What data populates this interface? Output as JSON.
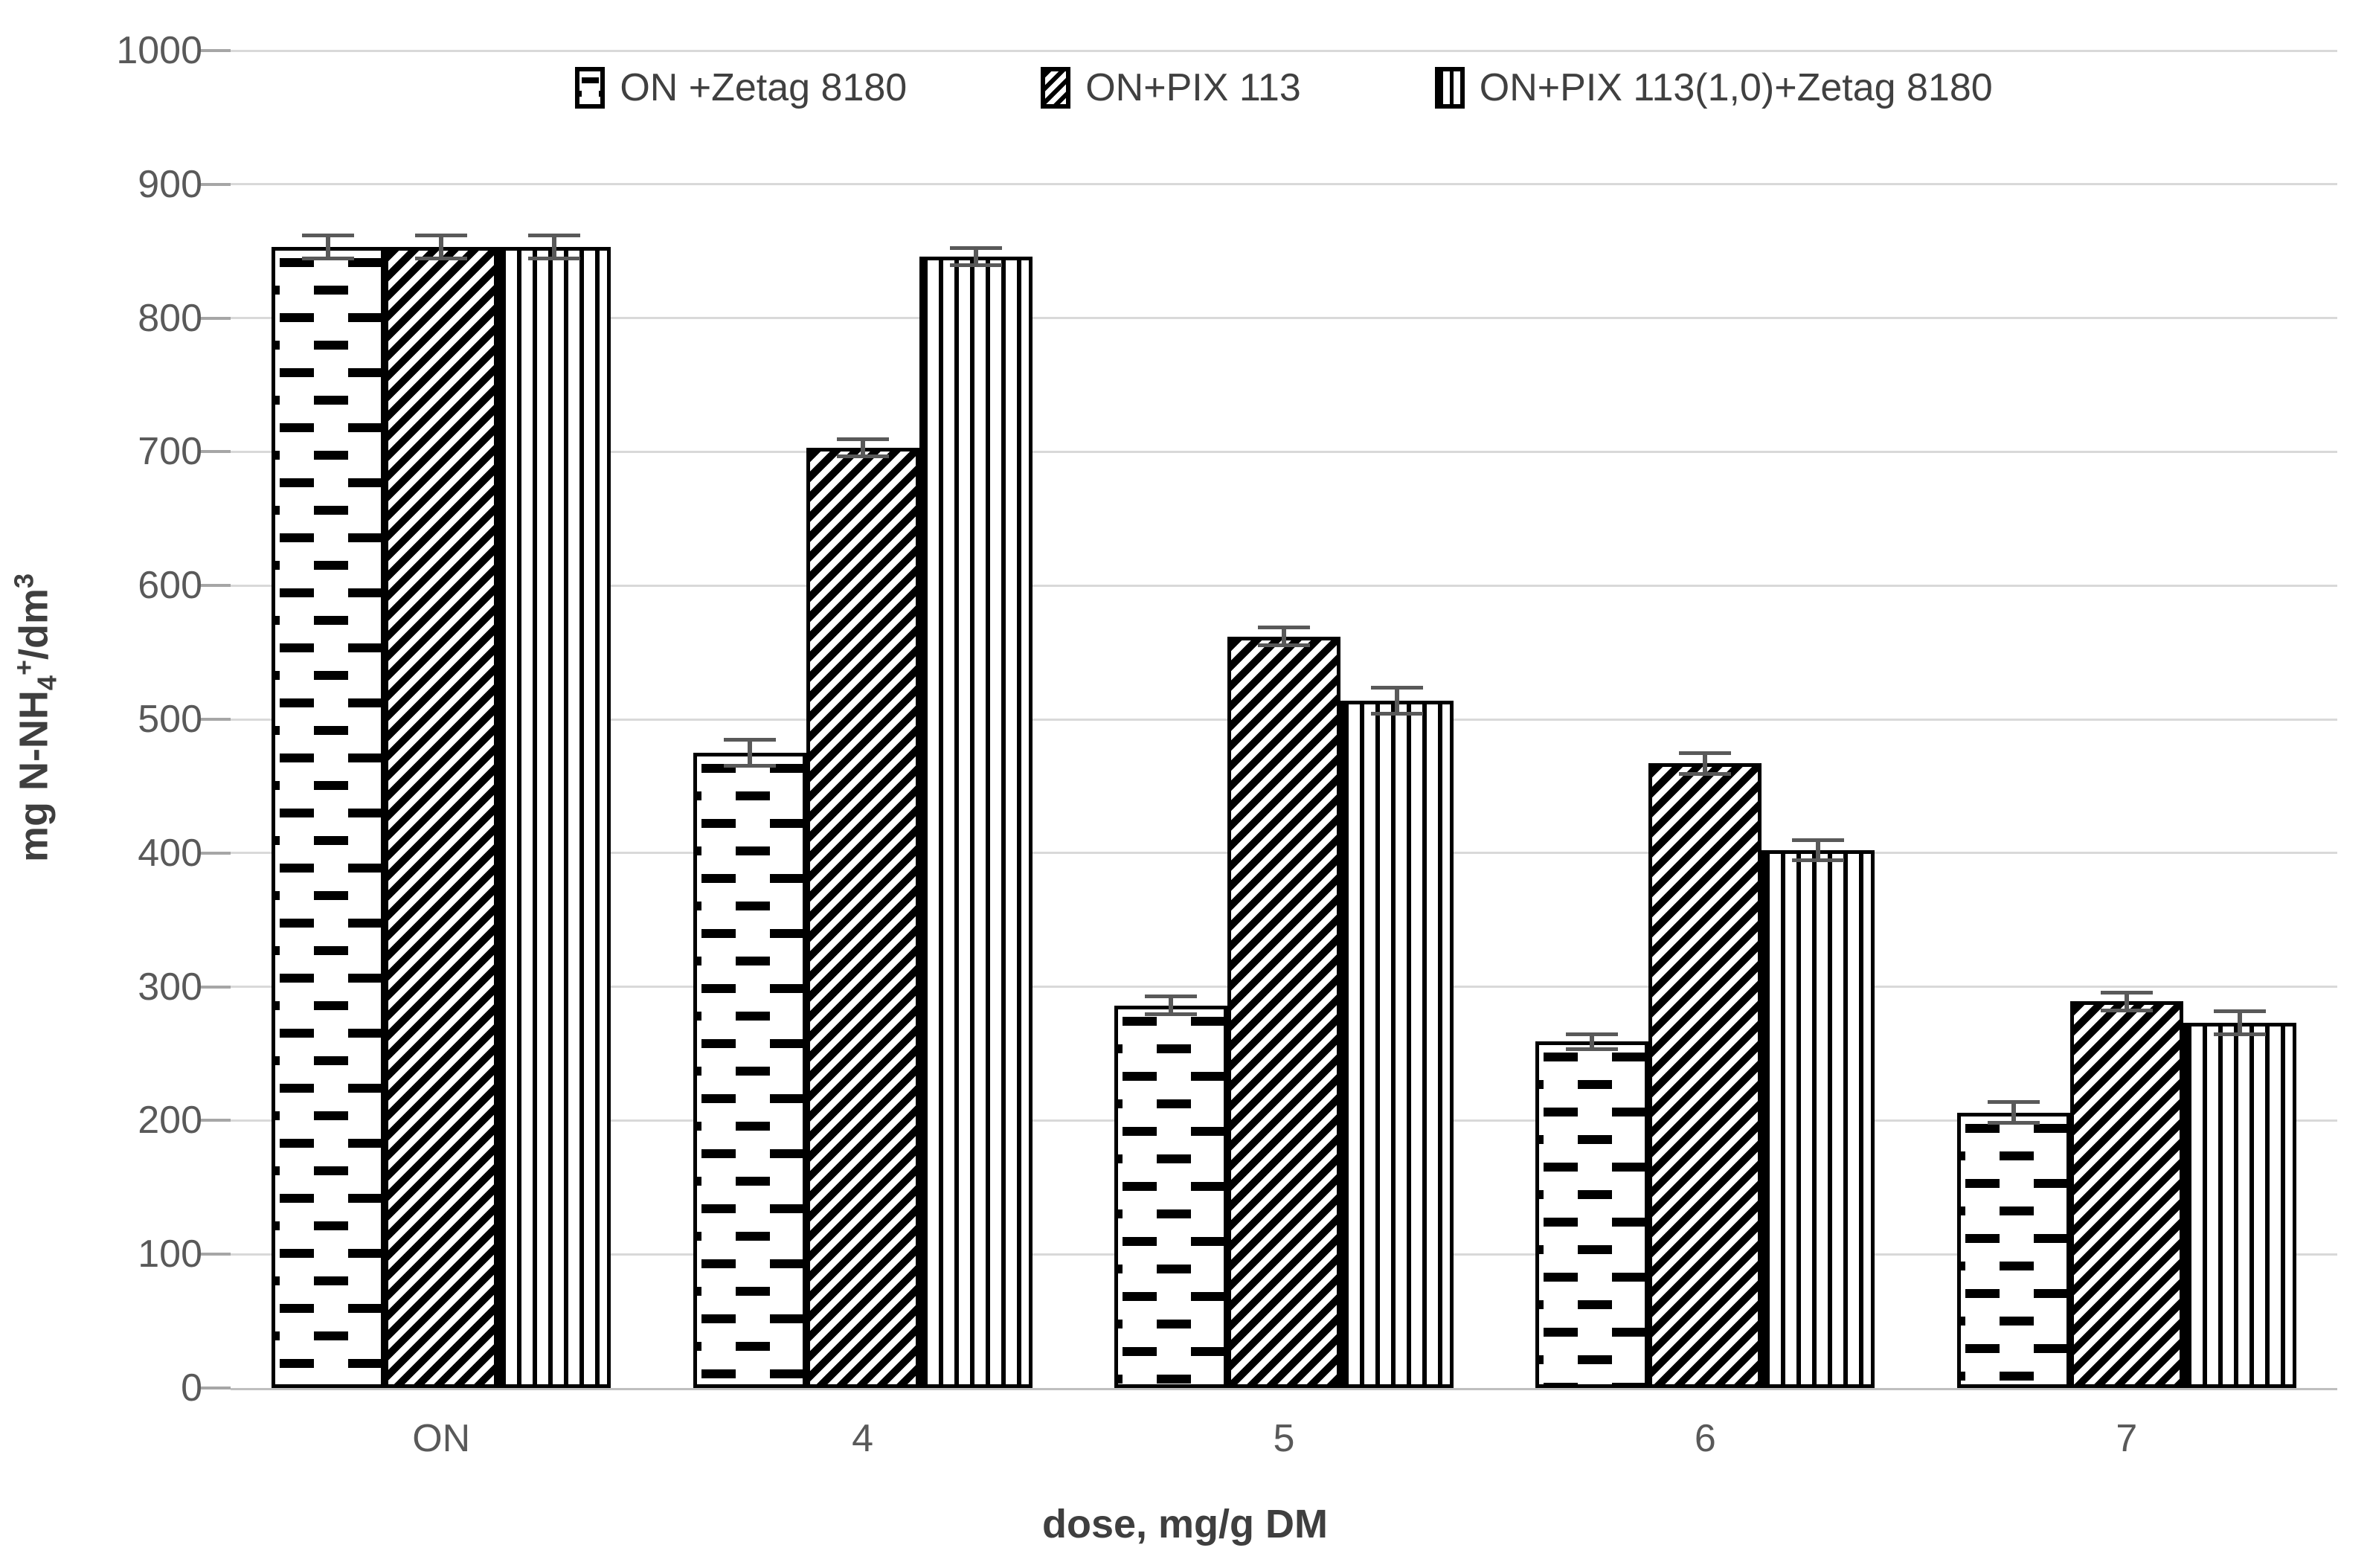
{
  "chart_data": {
    "type": "bar",
    "title": "",
    "categories": [
      "ON",
      "4",
      "5",
      "6",
      "7"
    ],
    "series": [
      {
        "name": "ON +Zetag 8180",
        "pattern": "dashed-horizontal",
        "values": [
          853,
          475,
          286,
          259,
          206
        ],
        "errors": [
          10,
          11,
          8,
          7,
          9
        ]
      },
      {
        "name": "ON+PIX 113",
        "pattern": "diagonal-hatch",
        "values": [
          853,
          703,
          562,
          467,
          289
        ],
        "errors": [
          10,
          8,
          8,
          9,
          8
        ]
      },
      {
        "name": "ON+PIX 113(1,0)+Zetag 8180",
        "pattern": "vertical-lines",
        "values": [
          853,
          846,
          514,
          402,
          273
        ],
        "errors": [
          10,
          8,
          11,
          9,
          10
        ]
      }
    ],
    "xlabel": "dose, mg/g DM",
    "ylabel": "mg N-NH4+/dm3",
    "ylabel_parts": {
      "pre": "mg N-NH",
      "sub": "4",
      "sup": "+",
      "mid": "/dm",
      "sup2": "3"
    },
    "ylim": [
      0,
      1000
    ],
    "ytick_step": 100,
    "grid": true,
    "legend_position": "top-center",
    "bar_fill": "white-with-black-pattern",
    "error_bars": true
  },
  "colors": {
    "background": "#ffffff",
    "bar_outline": "#000000",
    "gridline": "#d9d9d9",
    "axis_line": "#bfbfbf",
    "tick_mark": "#a6a6a6",
    "tick_label": "#595959",
    "axis_title": "#3f3f3f",
    "legend_text": "#404040",
    "error_bar": "#595959"
  }
}
